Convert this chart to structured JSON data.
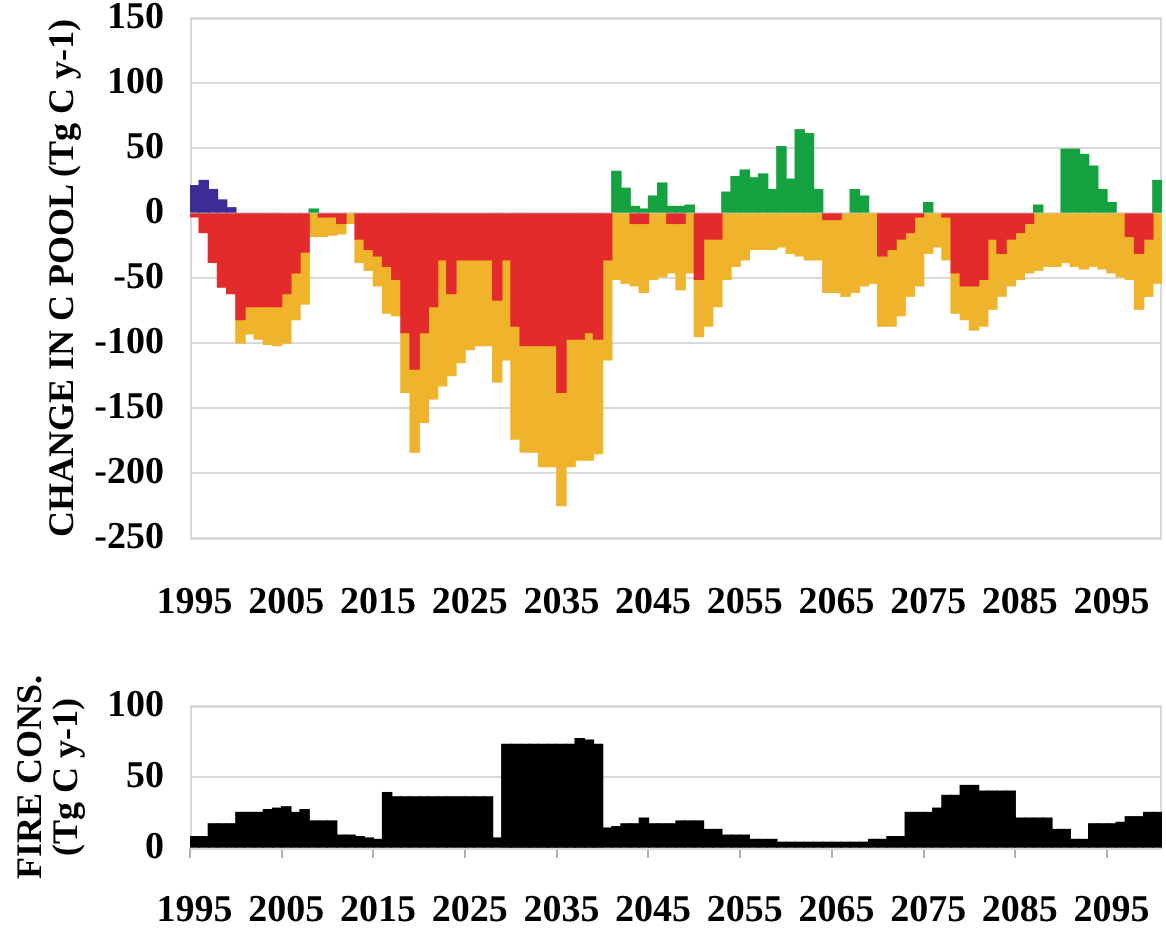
{
  "chart_data": [
    {
      "type": "bar",
      "stacked": true,
      "ylabel": "CHANGE IN C POOL (Tg C y-1)",
      "grid": "y",
      "ylim": [
        -250,
        150
      ],
      "yticks": [
        -250,
        -200,
        -150,
        -100,
        -50,
        0,
        50,
        100,
        150
      ],
      "categories": [
        "1995",
        null,
        null,
        null,
        null,
        null,
        null,
        null,
        null,
        null,
        "2005",
        null,
        null,
        null,
        null,
        null,
        null,
        null,
        null,
        null,
        "2015",
        null,
        null,
        null,
        null,
        null,
        null,
        null,
        null,
        null,
        "2025",
        null,
        null,
        null,
        null,
        null,
        null,
        null,
        null,
        null,
        "2035",
        null,
        null,
        null,
        null,
        null,
        null,
        null,
        null,
        null,
        "2045",
        null,
        null,
        null,
        null,
        null,
        null,
        null,
        null,
        null,
        "2055",
        null,
        null,
        null,
        null,
        null,
        null,
        null,
        null,
        null,
        "2065",
        null,
        null,
        null,
        null,
        null,
        null,
        null,
        null,
        null,
        "2075",
        null,
        null,
        null,
        null,
        null,
        null,
        null,
        null,
        null,
        "2085",
        null,
        null,
        null,
        null,
        null,
        null,
        null,
        null,
        null,
        "2095",
        null,
        null,
        null,
        null,
        null
      ],
      "series": [
        {
          "color": "#3c2d96",
          "values": [
            21,
            25,
            18,
            10,
            4,
            null,
            null,
            null,
            null,
            null,
            null,
            null,
            null,
            null,
            null,
            null,
            null,
            null,
            null,
            null,
            null,
            null,
            null,
            null,
            null,
            null,
            null,
            null,
            null,
            null,
            null,
            null,
            null,
            null,
            null,
            null,
            null,
            null,
            null,
            null,
            null,
            null,
            null,
            null,
            null,
            null,
            null,
            null,
            null,
            null,
            null,
            null,
            null,
            null,
            null,
            null,
            null,
            null,
            null,
            null,
            null,
            null,
            null,
            null,
            null,
            null,
            null,
            null,
            null,
            null,
            null,
            null,
            null,
            null,
            null,
            null,
            null,
            null,
            null,
            null,
            null,
            null,
            null,
            null,
            null,
            null,
            null,
            null,
            null,
            null,
            null,
            null,
            null,
            null,
            null,
            null,
            null,
            null,
            null,
            null,
            null,
            null,
            null,
            null,
            null,
            null
          ]
        },
        {
          "color": "#e32b2b",
          "values": [
            -3,
            -15,
            -38,
            -57,
            -62,
            -82,
            -72,
            -72,
            -72,
            -72,
            -62,
            -46,
            -30,
            null,
            -3,
            -3,
            -8,
            null,
            -20,
            -28,
            -33,
            -41,
            -51,
            -92,
            -120,
            -92,
            -72,
            -36,
            -62,
            -36,
            -36,
            -36,
            -36,
            -67,
            -36,
            -87,
            -102,
            -102,
            -102,
            -102,
            -138,
            -97,
            -97,
            -92,
            -97,
            -36,
            null,
            null,
            -8,
            -8,
            null,
            null,
            -8,
            -8,
            null,
            -51,
            -20,
            -20,
            null,
            null,
            null,
            null,
            null,
            null,
            null,
            null,
            null,
            null,
            null,
            -5,
            -5,
            null,
            null,
            null,
            null,
            -33,
            -28,
            -20,
            -15,
            -3,
            null,
            null,
            -3,
            -46,
            -56,
            -56,
            -51,
            -20,
            -31,
            -20,
            -15,
            -8,
            null,
            null,
            null,
            null,
            null,
            null,
            null,
            null,
            null,
            null,
            -18,
            -31,
            -20,
            null
          ]
        },
        {
          "color": "#efb42c",
          "values": [
            null,
            null,
            null,
            null,
            null,
            -18,
            -21,
            -25,
            -29,
            -30,
            -38,
            -36,
            -40,
            -18,
            -15,
            -14,
            -8,
            -8,
            -18,
            -16,
            -23,
            -36,
            -28,
            -46,
            -64,
            -69,
            -71,
            -97,
            -63,
            -79,
            -69,
            -66,
            -66,
            -63,
            -77,
            -87,
            -82,
            -82,
            -93,
            -93,
            -87,
            -98,
            -93,
            -98,
            -88,
            -77,
            -51,
            -54,
            -48,
            -53,
            -51,
            -49,
            -38,
            -51,
            -46,
            -44,
            -67,
            -52,
            -51,
            -41,
            -36,
            -28,
            -28,
            -28,
            -26,
            -31,
            -33,
            -36,
            -36,
            -56,
            -56,
            -64,
            -61,
            -56,
            -54,
            -54,
            -59,
            -59,
            -49,
            -53,
            -31,
            -26,
            -33,
            -31,
            -26,
            -34,
            -36,
            -54,
            -33,
            -36,
            -36,
            -38,
            -44,
            -41,
            -41,
            -38,
            -41,
            -43,
            -41,
            -43,
            -46,
            -49,
            -33,
            -43,
            -44,
            -54
          ]
        },
        {
          "color": "#13a23f",
          "values": [
            null,
            null,
            null,
            null,
            null,
            null,
            null,
            null,
            null,
            null,
            null,
            null,
            null,
            3,
            null,
            null,
            null,
            null,
            null,
            null,
            null,
            null,
            null,
            null,
            null,
            null,
            null,
            null,
            null,
            null,
            null,
            null,
            null,
            null,
            null,
            null,
            null,
            null,
            null,
            null,
            null,
            null,
            null,
            null,
            null,
            null,
            32,
            19,
            5,
            3,
            13,
            23,
            5,
            5,
            6,
            null,
            null,
            null,
            16,
            28,
            33,
            27,
            30,
            18,
            51,
            26,
            64,
            61,
            18,
            null,
            null,
            null,
            18,
            13,
            null,
            null,
            null,
            null,
            null,
            null,
            8,
            null,
            null,
            null,
            null,
            null,
            null,
            null,
            null,
            null,
            null,
            null,
            6,
            null,
            null,
            49,
            49,
            45,
            36,
            18,
            8,
            null,
            null,
            null,
            null,
            25
          ]
        }
      ]
    },
    {
      "type": "bar",
      "ylabel": "FIRE CONS. (Tg C y-1)",
      "grid": "y",
      "ylim": [
        0,
        100
      ],
      "yticks": [
        0,
        50,
        100
      ],
      "color": "#000000",
      "categories": [
        "1995",
        null,
        null,
        null,
        null,
        null,
        null,
        null,
        null,
        null,
        "2005",
        null,
        null,
        null,
        null,
        null,
        null,
        null,
        null,
        null,
        "2015",
        null,
        null,
        null,
        null,
        null,
        null,
        null,
        null,
        null,
        "2025",
        null,
        null,
        null,
        null,
        null,
        null,
        null,
        null,
        null,
        "2035",
        null,
        null,
        null,
        null,
        null,
        null,
        null,
        null,
        null,
        "2045",
        null,
        null,
        null,
        null,
        null,
        null,
        null,
        null,
        null,
        "2055",
        null,
        null,
        null,
        null,
        null,
        null,
        null,
        null,
        null,
        "2065",
        null,
        null,
        null,
        null,
        null,
        null,
        null,
        null,
        null,
        "2075",
        null,
        null,
        null,
        null,
        null,
        null,
        null,
        null,
        null,
        "2085",
        null,
        null,
        null,
        null,
        null,
        null,
        null,
        null,
        null,
        "2095",
        null,
        null,
        null,
        null,
        null
      ],
      "values": [
        8,
        8,
        17,
        17,
        17,
        25,
        25,
        25,
        27,
        28,
        29,
        25,
        27,
        19,
        19,
        19,
        9,
        9,
        8,
        7,
        6,
        39,
        36,
        36,
        36,
        36,
        36,
        36,
        36,
        36,
        36,
        36,
        36,
        7,
        73,
        73,
        73,
        73,
        73,
        73,
        73,
        73,
        77,
        76,
        73,
        14,
        15,
        17,
        17,
        21,
        17,
        17,
        17,
        19,
        19,
        19,
        13,
        13,
        9,
        9,
        9,
        6,
        6,
        6,
        4,
        4,
        4,
        4,
        4,
        4,
        4,
        4,
        4,
        4,
        6,
        6,
        8,
        8,
        25,
        25,
        25,
        28,
        37,
        37,
        44,
        44,
        40,
        40,
        40,
        40,
        21,
        21,
        21,
        21,
        13,
        13,
        6,
        6,
        17,
        17,
        17,
        18,
        22,
        22,
        25,
        25
      ]
    }
  ]
}
